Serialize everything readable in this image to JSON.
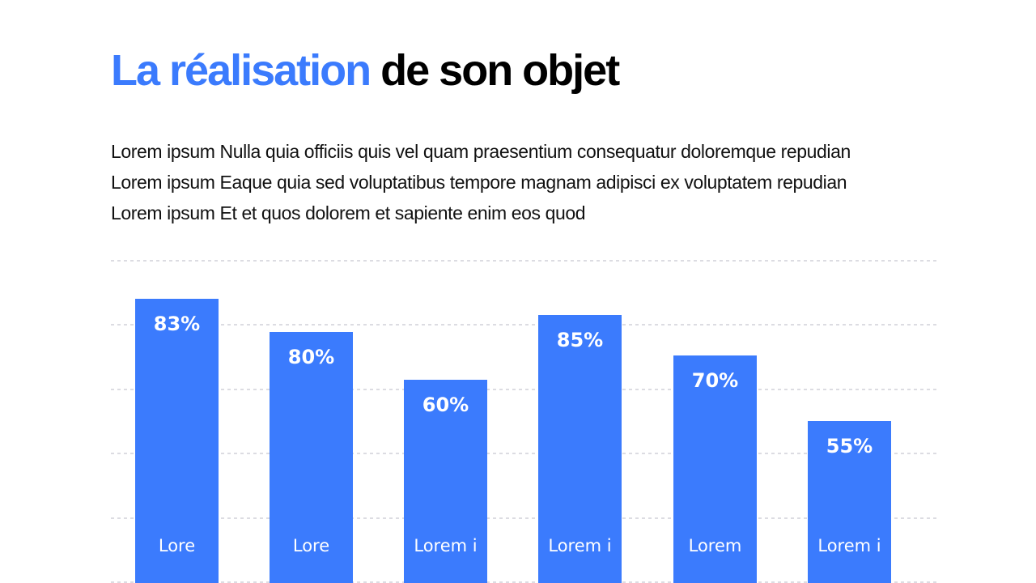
{
  "title": {
    "accent": "La réalisation",
    "rest": "de son objet"
  },
  "body_lines": [
    "Lorem ipsum Nulla quia officiis quis vel quam praesentium consequatur doloremque repudian",
    "Lorem ipsum Eaque quia sed voluptatibus tempore magnam adipisci ex voluptatem repudian",
    "Lorem ipsum Et et quos dolorem et sapiente enim eos quod"
  ],
  "colors": {
    "accent": "#3b7bfd",
    "bar": "#3b7bfd",
    "grid": "#b8b8c4"
  },
  "chart_data": {
    "type": "bar",
    "categories": [
      "Lore",
      "Lore",
      "Lorem i",
      "Lorem i",
      "Lorem",
      "Lorem i"
    ],
    "values": [
      83,
      80,
      60,
      85,
      70,
      55
    ],
    "value_labels": [
      "83%",
      "80%",
      "60%",
      "85%",
      "70%",
      "55%"
    ],
    "grid": true,
    "grid_style": "dashed horizontal"
  }
}
